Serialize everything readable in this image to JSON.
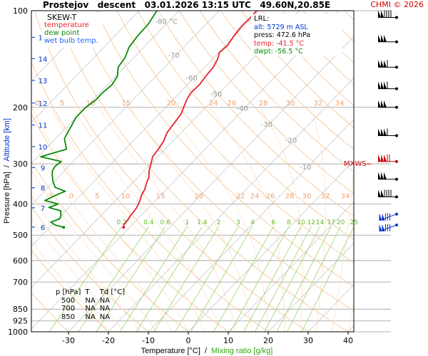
{
  "header": {
    "station": "Prostejov",
    "mode": "descent",
    "datetime": "03.01.2026 13:15 UTC",
    "coords": "49.60N,20.85E",
    "credit": "CHMI © 2026"
  },
  "legend": {
    "title": "SKEW-T",
    "items": [
      {
        "label": "temperature",
        "color": "#e8202a"
      },
      {
        "label": "dew point",
        "color": "#0a8a0a"
      },
      {
        "label": "wet bulb temp.",
        "color": "#2060ff"
      }
    ]
  },
  "lrl": {
    "title": "LRL:",
    "alt": "alt: 5729 m ASL",
    "press": "press: 472.6 hPa",
    "temp": "temp: -41.5 °C",
    "dwpt": "dwpt: -56.5 °C"
  },
  "mxws_label": "MXWS",
  "table": {
    "headers": [
      "p [hPa]",
      "T",
      "Td [°C]"
    ],
    "rows": [
      [
        "500",
        "NA",
        "NA"
      ],
      [
        "700",
        "NA",
        "NA"
      ],
      [
        "850",
        "NA",
        "NA"
      ]
    ]
  },
  "chart_data": {
    "type": "line",
    "ylabel_left": "Pressure [hPa]",
    "ylabel_sep": "/",
    "ylabel_right": "Altitude [km]",
    "xlabel": "Temperature [°C]",
    "xlabel_sep": "/",
    "xlabel_alt": "Mixing ratio [g/kg]",
    "xlim": [
      -35,
      45
    ],
    "pressure_ticks": [
      100,
      200,
      300,
      400,
      500,
      600,
      700,
      850,
      925,
      1000
    ],
    "temperature_ticks": [
      -30,
      -20,
      -10,
      0,
      10,
      20,
      30,
      40
    ],
    "altitude_ticks": [
      {
        "km": 15,
        "p": 121
      },
      {
        "km": 14,
        "p": 141
      },
      {
        "km": 13,
        "p": 165
      },
      {
        "km": 12,
        "p": 194
      },
      {
        "km": 11,
        "p": 227
      },
      {
        "km": 10,
        "p": 265
      },
      {
        "km": 9,
        "p": 308
      },
      {
        "km": 8,
        "p": 356
      },
      {
        "km": 7,
        "p": 411
      },
      {
        "km": 6,
        "p": 472
      }
    ],
    "dry_adiabat_labels": [
      {
        "t": -80,
        "p": 110
      },
      {
        "t": -70,
        "p": 140
      },
      {
        "t": -60,
        "p": 165
      },
      {
        "t": -50,
        "p": 185
      },
      {
        "t": -40,
        "p": 205
      },
      {
        "t": -30,
        "p": 230
      },
      {
        "t": -20,
        "p": 258
      },
      {
        "t": -10,
        "p": 312
      }
    ],
    "mixing_ratio_lines": [
      "0.2",
      "0.4",
      "0.6",
      "1",
      "1.4",
      "2",
      "3",
      "4",
      "6",
      "8",
      "10",
      "12",
      "14",
      "17",
      "20",
      "25"
    ],
    "mixing_ratio_label_p": 470,
    "moist_labels_upper": [
      {
        "t": "0",
        "p": 200
      },
      {
        "t": "5",
        "p": 200
      },
      {
        "t": "10",
        "p": 200
      },
      {
        "t": "15",
        "p": 200
      },
      {
        "t": "20",
        "p": 200
      },
      {
        "t": "24",
        "p": 200
      },
      {
        "t": "26",
        "p": 200
      },
      {
        "t": "28",
        "p": 200
      },
      {
        "t": "30",
        "p": 200
      },
      {
        "t": "32",
        "p": 200
      },
      {
        "t": "34",
        "p": 200
      }
    ],
    "moist_labels_lower": [
      {
        "t": "-5",
        "p": 390
      },
      {
        "t": "0",
        "p": 390
      },
      {
        "t": "5",
        "p": 390
      },
      {
        "t": "10",
        "p": 390
      },
      {
        "t": "15",
        "p": 390
      },
      {
        "t": "20",
        "p": 390
      },
      {
        "t": "22",
        "p": 390
      },
      {
        "t": "24",
        "p": 390
      },
      {
        "t": "26",
        "p": 390
      },
      {
        "t": "28",
        "p": 390
      },
      {
        "t": "30",
        "p": 390
      },
      {
        "t": "32",
        "p": 390
      },
      {
        "t": "34",
        "p": 390
      }
    ],
    "series": [
      {
        "name": "temperature",
        "color": "#e8202a",
        "points": [
          [
            100,
            -60.6
          ],
          [
            105,
            -60.5
          ],
          [
            112,
            -60.6
          ],
          [
            120,
            -60.2
          ],
          [
            128,
            -59.5
          ],
          [
            135,
            -59.8
          ],
          [
            142,
            -58.6
          ],
          [
            150,
            -57.8
          ],
          [
            160,
            -57.5
          ],
          [
            170,
            -57.0
          ],
          [
            180,
            -57.2
          ],
          [
            190,
            -56.5
          ],
          [
            200,
            -55.5
          ],
          [
            210,
            -54.5
          ],
          [
            225,
            -54.0
          ],
          [
            240,
            -53.5
          ],
          [
            255,
            -52.3
          ],
          [
            270,
            -51.7
          ],
          [
            285,
            -51.3
          ],
          [
            300,
            -50.0
          ],
          [
            315,
            -48.8
          ],
          [
            330,
            -47.3
          ],
          [
            345,
            -46.4
          ],
          [
            360,
            -45.4
          ],
          [
            375,
            -44.8
          ],
          [
            390,
            -43.9
          ],
          [
            400,
            -43.4
          ],
          [
            410,
            -43.0
          ],
          [
            420,
            -42.8
          ],
          [
            435,
            -42.6
          ],
          [
            450,
            -42.2
          ],
          [
            465,
            -42.0
          ],
          [
            472.6,
            -41.5
          ]
        ]
      },
      {
        "name": "dew point",
        "color": "#0a8a0a",
        "points": [
          [
            100,
            -85.6
          ],
          [
            110,
            -84.5
          ],
          [
            120,
            -84.3
          ],
          [
            130,
            -83.7
          ],
          [
            140,
            -82.2
          ],
          [
            150,
            -81.6
          ],
          [
            160,
            -79.6
          ],
          [
            170,
            -78.9
          ],
          [
            180,
            -79.3
          ],
          [
            190,
            -79.3
          ],
          [
            200,
            -80.0
          ],
          [
            215,
            -80.0
          ],
          [
            230,
            -79.0
          ],
          [
            250,
            -77.8
          ],
          [
            270,
            -74.7
          ],
          [
            285,
            -79.3
          ],
          [
            295,
            -73.0
          ],
          [
            305,
            -73.4
          ],
          [
            315,
            -73.0
          ],
          [
            325,
            -72.0
          ],
          [
            340,
            -70.3
          ],
          [
            355,
            -68.3
          ],
          [
            365,
            -64.8
          ],
          [
            375,
            -66.2
          ],
          [
            390,
            -67.7
          ],
          [
            400,
            -63.5
          ],
          [
            410,
            -65.0
          ],
          [
            420,
            -61.2
          ],
          [
            435,
            -60.0
          ],
          [
            445,
            -59.5
          ],
          [
            455,
            -61.0
          ],
          [
            465,
            -59.2
          ],
          [
            472.6,
            -56.5
          ]
        ]
      }
    ],
    "mxws_p": 300,
    "wind_barbs": [
      {
        "p": 105,
        "dir": 270,
        "speed": 145
      },
      {
        "p": 125,
        "dir": 270,
        "speed": 150
      },
      {
        "p": 150,
        "dir": 270,
        "speed": 160
      },
      {
        "p": 175,
        "dir": 270,
        "speed": 160
      },
      {
        "p": 200,
        "dir": 270,
        "speed": 155
      },
      {
        "p": 245,
        "dir": 270,
        "speed": 160
      },
      {
        "p": 295,
        "dir": 270,
        "speed": 170
      },
      {
        "p": 335,
        "dir": 270,
        "speed": 155
      },
      {
        "p": 380,
        "dir": 270,
        "speed": 145
      },
      {
        "p": 430,
        "dir": 250,
        "speed": 135
      },
      {
        "p": 465,
        "dir": 250,
        "speed": 130
      }
    ]
  }
}
